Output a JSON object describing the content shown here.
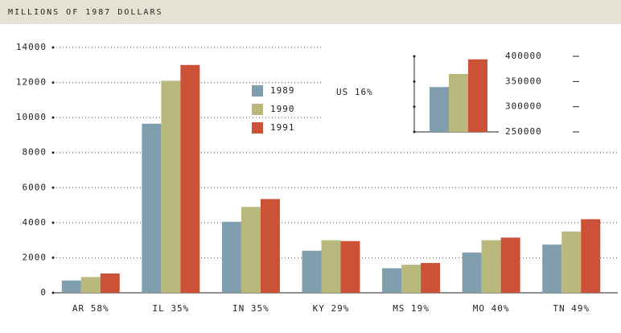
{
  "chart_data": [
    {
      "type": "bar",
      "title": "MILLIONS OF 1987 DOLLARS",
      "categories": [
        "AR 58%",
        "IL 35%",
        "IN 35%",
        "KY 29%",
        "MS 19%",
        "MO 40%",
        "TN 49%"
      ],
      "series": [
        {
          "name": "1989",
          "color": "#7f9eae",
          "values": [
            700,
            9650,
            4050,
            2400,
            1400,
            2300,
            2750
          ]
        },
        {
          "name": "1990",
          "color": "#b9b97d",
          "values": [
            900,
            12100,
            4900,
            3000,
            1600,
            3000,
            3500
          ]
        },
        {
          "name": "1991",
          "color": "#cb5236",
          "values": [
            1100,
            13000,
            5350,
            2950,
            1700,
            3150,
            4200
          ]
        }
      ],
      "ylim": [
        0,
        14000
      ],
      "yticks": [
        0,
        2000,
        4000,
        6000,
        8000,
        10000,
        12000,
        14000
      ],
      "grid": true
    },
    {
      "type": "bar",
      "categories": [
        "US 16%"
      ],
      "series": [
        {
          "color": "#7f9eae",
          "values": [
            339000
          ]
        },
        {
          "color": "#b9b97d",
          "values": [
            365000
          ]
        },
        {
          "color": "#cb5236",
          "values": [
            394000
          ]
        }
      ],
      "ylim": [
        250000,
        400000
      ],
      "yticks": [
        250000,
        300000,
        350000,
        400000
      ]
    }
  ]
}
